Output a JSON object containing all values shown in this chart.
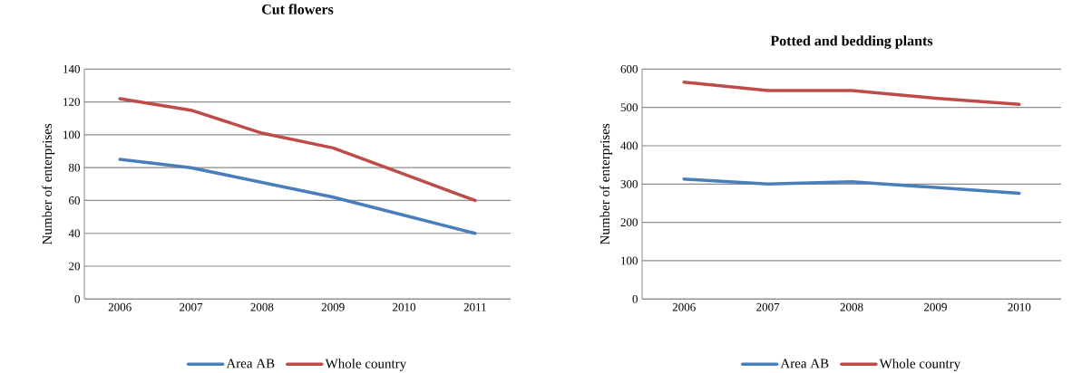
{
  "chart_data": [
    {
      "type": "line",
      "title": "Cut flowers",
      "ylabel": "Number of enterprises",
      "categories": [
        "2006",
        "2007",
        "2008",
        "2009",
        "2010",
        "2011"
      ],
      "ylim": [
        0,
        140
      ],
      "yticks": [
        0,
        20,
        40,
        60,
        80,
        100,
        120,
        140
      ],
      "grid": "y",
      "legend": "bottom",
      "marker": "none",
      "line_style": "solid",
      "series": [
        {
          "name": "Area AB",
          "color": "#4a7ebb",
          "values": [
            85,
            80,
            71,
            62,
            51,
            40
          ]
        },
        {
          "name": "Whole country",
          "color": "#be4b48",
          "values": [
            122,
            115,
            101,
            92,
            76,
            60
          ]
        }
      ]
    },
    {
      "type": "line",
      "title": "Potted and bedding plants",
      "ylabel": "Number of enterprises",
      "categories": [
        "2006",
        "2007",
        "2008",
        "2009",
        "2010"
      ],
      "ylim": [
        0,
        600
      ],
      "yticks": [
        0,
        100,
        200,
        300,
        400,
        500,
        600
      ],
      "grid": "y",
      "legend": "bottom",
      "marker": "none",
      "line_style": "solid",
      "series": [
        {
          "name": "Area AB",
          "color": "#4a7ebb",
          "values": [
            313,
            300,
            306,
            291,
            276
          ]
        },
        {
          "name": "Whole country",
          "color": "#be4b48",
          "values": [
            566,
            544,
            544,
            524,
            508
          ]
        }
      ]
    }
  ]
}
